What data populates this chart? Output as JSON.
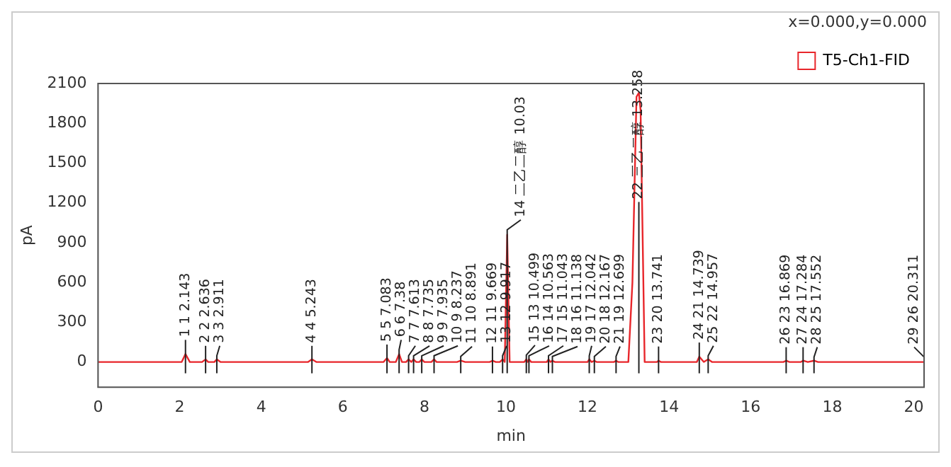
{
  "chart_data": {
    "type": "line",
    "xlabel": "min",
    "ylabel": "pA",
    "xlim": [
      0,
      20.25
    ],
    "ylim": [
      -190,
      2100
    ],
    "xticks": [
      0,
      2,
      4,
      6,
      8,
      10,
      12,
      14,
      16,
      18,
      20
    ],
    "yticks": [
      0,
      300,
      600,
      900,
      1200,
      1500,
      1800,
      2100
    ],
    "grid": false,
    "legend": "top right",
    "marker": "none",
    "line_style": "solid",
    "series": [
      {
        "name": "T5-Ch1-FID",
        "color": "#e8262b",
        "x": [
          0,
          2.05,
          2.143,
          2.25,
          2.55,
          2.636,
          2.7,
          2.85,
          2.911,
          3.0,
          5.15,
          5.243,
          5.35,
          7.0,
          7.083,
          7.15,
          7.3,
          7.38,
          7.45,
          7.55,
          7.613,
          7.68,
          7.735,
          7.8,
          7.88,
          7.935,
          8.0,
          8.17,
          8.237,
          8.3,
          8.8,
          8.891,
          9.0,
          9.6,
          9.669,
          9.75,
          9.85,
          9.917,
          9.97,
          10.03,
          10.09,
          10.45,
          10.499,
          10.53,
          10.563,
          10.62,
          11.0,
          11.043,
          11.09,
          11.138,
          11.2,
          12.0,
          12.042,
          12.1,
          12.167,
          12.22,
          12.65,
          12.699,
          12.75,
          13.0,
          13.1,
          13.2,
          13.258,
          13.3,
          13.4,
          13.7,
          13.741,
          13.8,
          14.68,
          14.739,
          14.85,
          14.957,
          15.05,
          16.8,
          16.869,
          16.95,
          17.23,
          17.284,
          17.4,
          17.552,
          17.65,
          20.25
        ],
        "values": [
          0,
          0,
          60,
          0,
          0,
          20,
          0,
          0,
          20,
          0,
          0,
          20,
          0,
          0,
          30,
          0,
          0,
          60,
          0,
          0,
          20,
          0,
          20,
          0,
          0,
          20,
          0,
          0,
          20,
          0,
          0,
          10,
          0,
          0,
          10,
          0,
          0,
          20,
          0,
          960,
          0,
          0,
          20,
          0,
          20,
          0,
          0,
          20,
          0,
          10,
          0,
          0,
          20,
          0,
          10,
          0,
          0,
          10,
          0,
          0,
          600,
          2000,
          2030,
          1900,
          0,
          0,
          10,
          0,
          0,
          40,
          0,
          20,
          0,
          0,
          10,
          0,
          0,
          10,
          0,
          10,
          0,
          0
        ]
      }
    ],
    "annotations": [
      "x=0.000,y=0.000",
      {
        "text": "1 1 2.143",
        "x": 2.143,
        "y": 60
      },
      {
        "text": "2 2 2.636",
        "x": 2.636,
        "y": 15
      },
      {
        "text": "3 3 2.911",
        "x": 2.911,
        "y": 15
      },
      {
        "text": "4 4 5.243",
        "x": 5.243,
        "y": 15
      },
      {
        "text": "5 5 7.083",
        "x": 7.083,
        "y": 25
      },
      {
        "text": "6 6 7.38",
        "x": 7.38,
        "y": 60
      },
      {
        "text": "7 7 7.613",
        "x": 7.613,
        "y": 15
      },
      {
        "text": "8 8 7.735",
        "x": 7.735,
        "y": 15
      },
      {
        "text": "9 9 7.935",
        "x": 7.935,
        "y": 15
      },
      {
        "text": "10 9 8.237",
        "x": 8.237,
        "y": 15
      },
      {
        "text": "11 10 8.891",
        "x": 8.891,
        "y": 10
      },
      {
        "text": "12 11 9.669",
        "x": 9.669,
        "y": 10
      },
      {
        "text": "13 12 9.917",
        "x": 9.917,
        "y": 15
      },
      {
        "text": "14 二乙二醇 10.03",
        "x": 10.03,
        "y": 965
      },
      {
        "text": "15 13 10.499",
        "x": 10.499,
        "y": 20
      },
      {
        "text": "16 14 10.563",
        "x": 10.563,
        "y": 15
      },
      {
        "text": "17 15 11.043",
        "x": 11.043,
        "y": 15
      },
      {
        "text": "18 16 11.138",
        "x": 11.138,
        "y": 10
      },
      {
        "text": "19 17 12.042",
        "x": 12.042,
        "y": 15
      },
      {
        "text": "20 18 12.167",
        "x": 12.167,
        "y": 10
      },
      {
        "text": "21 19 12.699",
        "x": 12.699,
        "y": 10
      },
      {
        "text": "22 三乙二醇 13.258",
        "x": 13.258,
        "y": 1100
      },
      {
        "text": "23 20 13.741",
        "x": 13.741,
        "y": 10
      },
      {
        "text": "24 21 14.739",
        "x": 14.739,
        "y": 40
      },
      {
        "text": "25 22 14.957",
        "x": 14.957,
        "y": 15
      },
      {
        "text": "26 23 16.869",
        "x": 16.869,
        "y": 5
      },
      {
        "text": "27 24 17.284",
        "x": 17.284,
        "y": 5
      },
      {
        "text": "28 25 17.552",
        "x": 17.552,
        "y": 5
      },
      {
        "text": "29 26 20.311",
        "x": 20.25,
        "y": 5
      }
    ]
  }
}
